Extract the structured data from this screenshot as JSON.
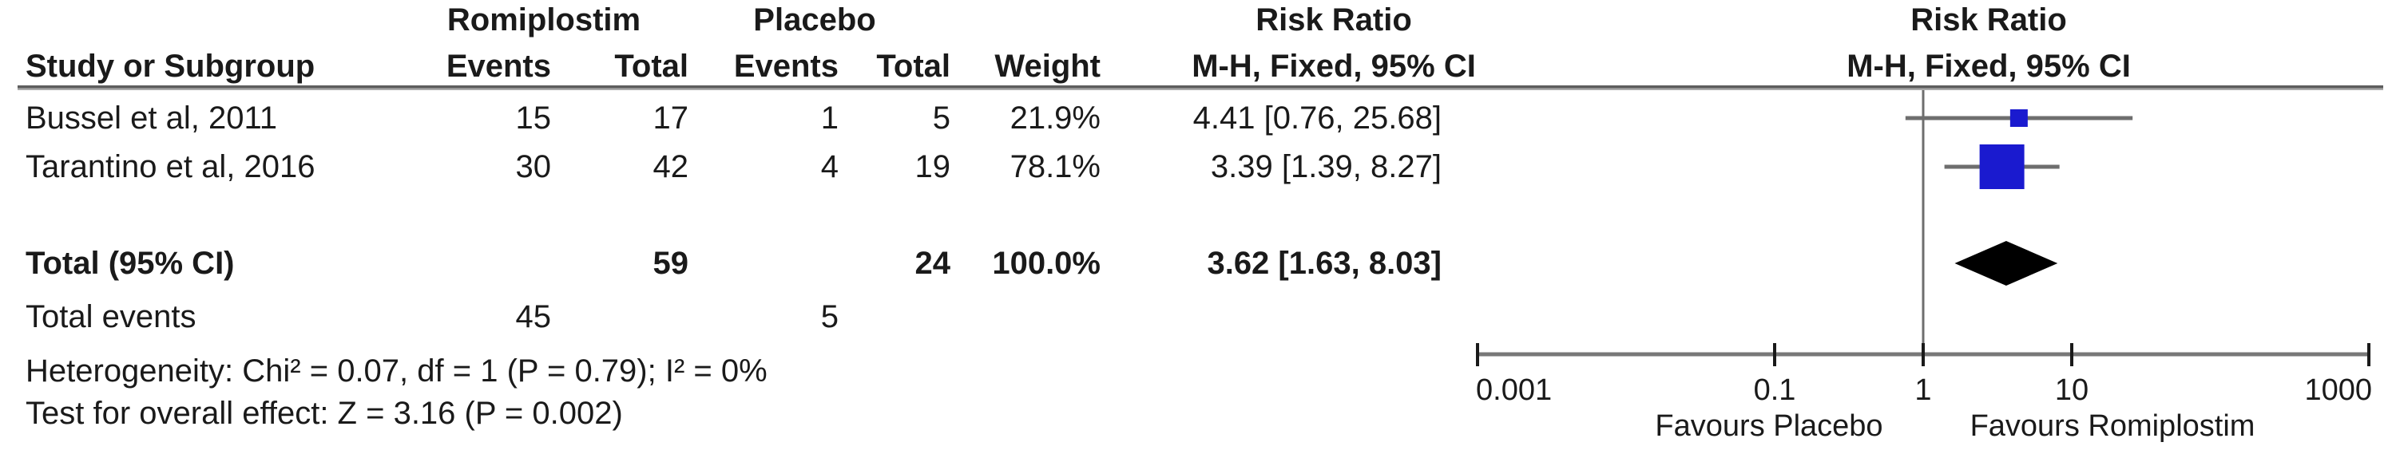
{
  "colors": {
    "marker_blue": "#1A1ACF",
    "diamond_black": "#000000",
    "ci_line_gray": "#6e6e6e",
    "axis_gray": "#787878",
    "tick_black": "#1a1a1a",
    "text": "#1a1a1a"
  },
  "table": {
    "group_experimental": "Romiplostim",
    "group_control": "Placebo",
    "risk_ratio_header": "Risk Ratio",
    "mh_header": "M-H, Fixed, 95% CI",
    "columns": {
      "study": "Study or Subgroup",
      "events": "Events",
      "total": "Total",
      "weight": "Weight"
    }
  },
  "chart_data": {
    "type": "forest",
    "effect_measure": "Risk Ratio",
    "method": "M-H, Fixed, 95% CI",
    "x_axis": {
      "scale": "log10",
      "min": 0.001,
      "max": 1000,
      "ticks": [
        0.001,
        0.1,
        1,
        10,
        1000
      ],
      "tick_labels": [
        "0.001",
        "0.1",
        "1",
        "10",
        "1000"
      ],
      "null_line": 1,
      "favours_left": "Favours Placebo",
      "favours_right": "Favours Romiplostim"
    },
    "studies": [
      {
        "name": "Bussel et al, 2011",
        "events_exp": "15",
        "total_exp": "17",
        "events_ctl": "1",
        "total_ctl": "5",
        "weight": "21.9%",
        "rr": 4.41,
        "ci_low": 0.76,
        "ci_high": 25.68,
        "ci_label": "4.41 [0.76, 25.68]",
        "marker_size": 22
      },
      {
        "name": "Tarantino et al, 2016",
        "events_exp": "30",
        "total_exp": "42",
        "events_ctl": "4",
        "total_ctl": "19",
        "weight": "78.1%",
        "rr": 3.39,
        "ci_low": 1.39,
        "ci_high": 8.27,
        "ci_label": "3.39 [1.39, 8.27]",
        "marker_size": 56
      }
    ],
    "total": {
      "label": "Total (95% CI)",
      "total_exp": "59",
      "total_ctl": "24",
      "weight": "100.0%",
      "rr": 3.62,
      "ci_low": 1.63,
      "ci_high": 8.03,
      "ci_label": "3.62 [1.63, 8.03]"
    },
    "total_events": {
      "label": "Total events",
      "exp": "45",
      "ctl": "5"
    },
    "heterogeneity": "Heterogeneity: Chi² = 0.07, df = 1 (P = 0.79); I² = 0%",
    "overall_effect": "Test for overall effect: Z = 3.16 (P = 0.002)"
  }
}
